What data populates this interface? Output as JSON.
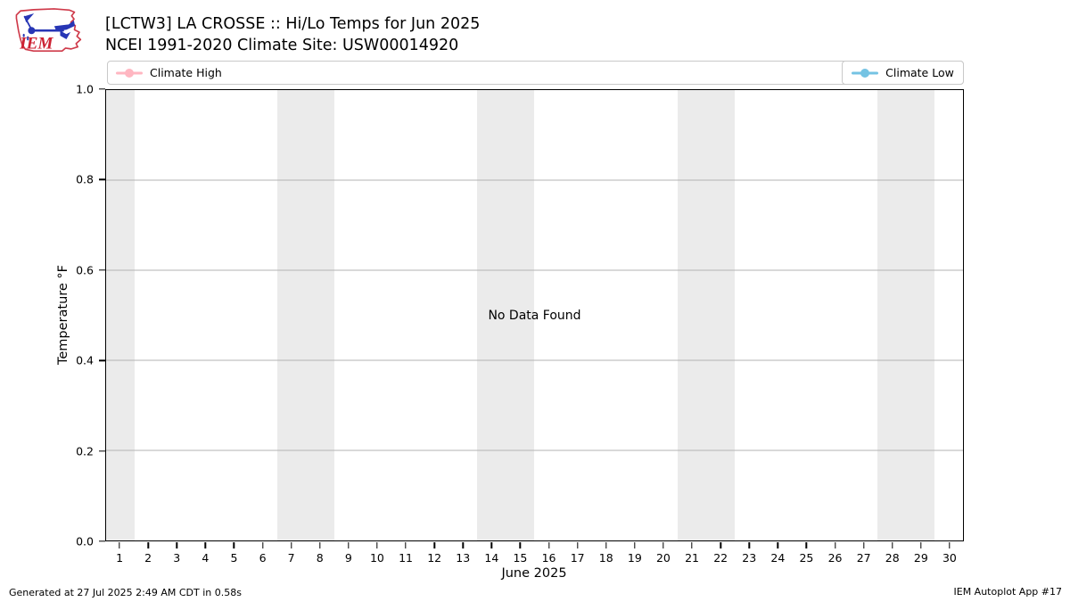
{
  "header": {
    "title_line1": "[LCTW3] LA CROSSE :: Hi/Lo Temps for Jun 2025",
    "title_line2": "NCEI 1991-2020 Climate Site: USW00014920",
    "logo_text": "IEM"
  },
  "legend": {
    "high_label": "Climate High",
    "low_label": "Climate Low",
    "high_color": "#ffb6c1",
    "low_color": "#74c3e3"
  },
  "chart_data": {
    "type": "line",
    "title": "[LCTW3] LA CROSSE :: Hi/Lo Temps for Jun 2025",
    "subtitle": "NCEI 1991-2020 Climate Site: USW00014920",
    "xlabel": "June 2025",
    "ylabel": "Temperature °F",
    "no_data_text": "No Data Found",
    "series": [
      {
        "name": "Climate High",
        "color": "#ffb6c1",
        "values": []
      },
      {
        "name": "Climate Low",
        "color": "#74c3e3",
        "values": []
      }
    ],
    "x_range": [
      0.5,
      30.5
    ],
    "x_ticks": [
      1,
      2,
      3,
      4,
      5,
      6,
      7,
      8,
      9,
      10,
      11,
      12,
      13,
      14,
      15,
      16,
      17,
      18,
      19,
      20,
      21,
      22,
      23,
      24,
      25,
      26,
      27,
      28,
      29,
      30
    ],
    "ylim": [
      0.0,
      1.0
    ],
    "y_ticks": [
      {
        "value": 0.0,
        "label": "0.0"
      },
      {
        "value": 0.2,
        "label": "0.2"
      },
      {
        "value": 0.4,
        "label": "0.4"
      },
      {
        "value": 0.6,
        "label": "0.6"
      },
      {
        "value": 0.8,
        "label": "0.8"
      },
      {
        "value": 1.0,
        "label": "1.0"
      }
    ],
    "gridlines": [
      0.2,
      0.4,
      0.6,
      0.8
    ],
    "grid_color": "#b3b3b3",
    "weekend_bands": [
      [
        0.5,
        1.5
      ],
      [
        6.5,
        8.5
      ],
      [
        13.5,
        15.5
      ],
      [
        20.5,
        22.5
      ],
      [
        27.5,
        29.5
      ]
    ],
    "band_color": "#ebebeb",
    "legend_position": "top"
  },
  "footer": {
    "left": "Generated at 27 Jul 2025 2:49 AM CDT in 0.58s",
    "right": "IEM Autoplot App #17"
  }
}
